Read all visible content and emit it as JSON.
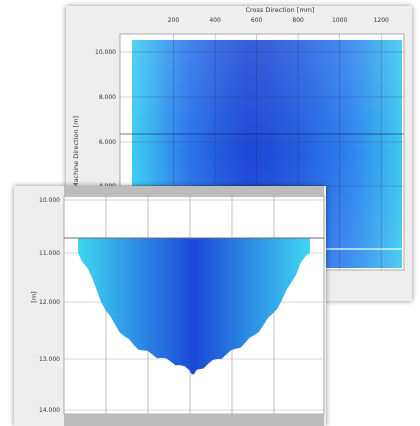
{
  "chart_data": [
    {
      "type": "heatmap",
      "title": "",
      "xlabel": "Cross Direction [mm]",
      "ylabel": "Machine Direction [m]",
      "x_ticks": [
        "200",
        "400",
        "600",
        "800",
        "1000",
        "1200"
      ],
      "y_ticks": [
        "10.000",
        "8.000",
        "6.000",
        "4.000"
      ],
      "xlim": [
        0,
        1300
      ],
      "grid": true,
      "colors": {
        "edge": "#3fd6f2",
        "mid": "#2b79ec",
        "center": "#1d48d6",
        "deep": "#1a3cc8"
      },
      "column_profile": [
        0.05,
        0.2,
        0.38,
        0.55,
        0.72,
        0.88,
        1.0,
        0.96,
        0.86,
        0.74,
        0.6,
        0.48,
        0.36,
        0.22,
        0.08
      ]
    },
    {
      "type": "area",
      "title": "",
      "xlabel": "",
      "ylabel": "[m]",
      "y_ticks": [
        "10.000",
        "11.000",
        "12.000",
        "13.000",
        "14.000"
      ],
      "grid": true,
      "baseline": 11.0,
      "colors": {
        "edge": "#3fd6f2",
        "center": "#1b48d8"
      },
      "profile": {
        "x_frac": [
          0,
          0.04,
          0.08,
          0.12,
          0.16,
          0.2,
          0.24,
          0.28,
          0.32,
          0.36,
          0.4,
          0.44,
          0.48,
          0.5,
          0.52,
          0.56,
          0.6,
          0.64,
          0.68,
          0.72,
          0.76,
          0.8,
          0.84,
          0.88,
          0.92,
          0.96,
          1
        ],
        "depth": [
          11.0,
          11.3,
          11.75,
          12.15,
          12.4,
          12.6,
          12.75,
          12.85,
          12.92,
          12.98,
          13.05,
          13.12,
          13.22,
          13.3,
          13.2,
          13.1,
          13.0,
          12.92,
          12.82,
          12.72,
          12.58,
          12.4,
          12.2,
          11.95,
          11.6,
          11.2,
          11.0
        ]
      }
    }
  ]
}
